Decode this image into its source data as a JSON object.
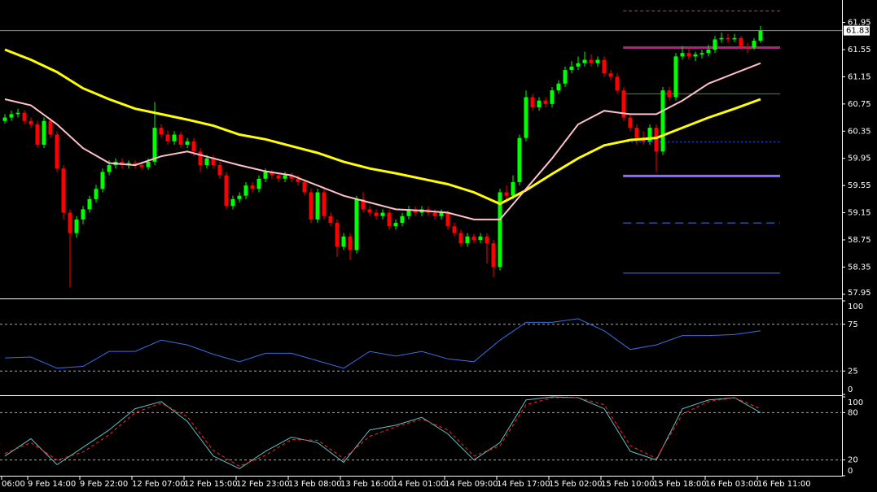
{
  "chart_data": [
    {
      "type": "candlestick",
      "up_color": "#00ff00",
      "down_color": "#ff0000",
      "xlim": [
        -0.75,
        128.375
      ],
      "ylim": [
        57.9,
        62.28
      ],
      "yticks": [
        61.95,
        61.55,
        61.15,
        60.75,
        60.35,
        59.95,
        59.55,
        59.15,
        58.75,
        58.35,
        57.95
      ],
      "xticks": [
        {
          "value": -0.5,
          "label": "06:00"
        },
        {
          "value": 3.5,
          "label": "9 Feb 14:00"
        },
        {
          "value": 11.5,
          "label": "9 Feb 22:00"
        },
        {
          "value": 19.5,
          "label": "12 Feb 07:00"
        },
        {
          "value": 27.5,
          "label": "12 Feb 15:00"
        },
        {
          "value": 35.5,
          "label": "12 Feb 23:00"
        },
        {
          "value": 43.5,
          "label": "13 Feb 08:00"
        },
        {
          "value": 51.5,
          "label": "13 Feb 16:00"
        },
        {
          "value": 59.5,
          "label": "14 Feb 01:00"
        },
        {
          "value": 67.5,
          "label": "14 Feb 09:00"
        },
        {
          "value": 75.5,
          "label": "14 Feb 17:00"
        },
        {
          "value": 83.5,
          "label": "15 Feb 02:00"
        },
        {
          "value": 91.5,
          "label": "15 Feb 10:00"
        },
        {
          "value": 99.5,
          "label": "15 Feb 18:00"
        },
        {
          "value": 107.5,
          "label": "16 Feb 03:00"
        },
        {
          "value": 115.5,
          "label": "16 Feb 11:00"
        }
      ],
      "last_price": 61.83,
      "ohlc": [
        [
          60.5,
          60.6,
          60.46,
          60.55
        ],
        [
          60.55,
          60.65,
          60.5,
          60.6
        ],
        [
          60.6,
          60.68,
          60.55,
          60.62
        ],
        [
          60.62,
          60.66,
          60.45,
          60.5
        ],
        [
          60.5,
          60.55,
          60.4,
          60.45
        ],
        [
          60.45,
          60.5,
          60.1,
          60.15
        ],
        [
          60.15,
          60.55,
          60.1,
          60.5
        ],
        [
          60.5,
          60.54,
          60.25,
          60.3
        ],
        [
          60.3,
          60.35,
          59.75,
          59.8
        ],
        [
          59.8,
          59.85,
          59.05,
          59.15
        ],
        [
          59.15,
          59.2,
          58.05,
          58.85
        ],
        [
          58.85,
          59.1,
          58.78,
          59.05
        ],
        [
          59.05,
          59.25,
          58.98,
          59.2
        ],
        [
          59.2,
          59.4,
          59.15,
          59.35
        ],
        [
          59.35,
          59.56,
          59.3,
          59.5
        ],
        [
          59.5,
          59.8,
          59.45,
          59.75
        ],
        [
          59.75,
          59.92,
          59.7,
          59.85
        ],
        [
          59.85,
          59.95,
          59.8,
          59.9
        ],
        [
          59.9,
          59.95,
          59.8,
          59.85
        ],
        [
          59.85,
          59.92,
          59.8,
          59.88
        ],
        [
          59.88,
          59.92,
          59.8,
          59.85
        ],
        [
          59.85,
          59.9,
          59.78,
          59.82
        ],
        [
          59.82,
          59.95,
          59.78,
          59.9
        ],
        [
          59.9,
          60.78,
          59.85,
          60.4
        ],
        [
          60.4,
          60.45,
          60.25,
          60.3
        ],
        [
          60.3,
          60.36,
          60.15,
          60.2
        ],
        [
          60.2,
          60.35,
          60.15,
          60.3
        ],
        [
          60.3,
          60.34,
          60.1,
          60.15
        ],
        [
          60.15,
          60.25,
          60.1,
          60.2
        ],
        [
          60.2,
          60.25,
          59.98,
          60.05
        ],
        [
          60.05,
          60.1,
          59.75,
          59.85
        ],
        [
          59.85,
          60.0,
          59.8,
          59.95
        ],
        [
          59.95,
          60.0,
          59.8,
          59.85
        ],
        [
          59.85,
          59.9,
          59.65,
          59.7
        ],
        [
          59.7,
          59.75,
          59.2,
          59.25
        ],
        [
          59.25,
          59.4,
          59.2,
          59.35
        ],
        [
          59.35,
          59.45,
          59.3,
          59.4
        ],
        [
          59.4,
          59.6,
          59.35,
          59.55
        ],
        [
          59.55,
          59.6,
          59.45,
          59.5
        ],
        [
          59.5,
          59.7,
          59.45,
          59.65
        ],
        [
          59.65,
          59.8,
          59.6,
          59.75
        ],
        [
          59.75,
          59.78,
          59.65,
          59.7
        ],
        [
          59.7,
          59.74,
          59.6,
          59.65
        ],
        [
          59.65,
          59.75,
          59.6,
          59.7
        ],
        [
          59.7,
          59.74,
          59.6,
          59.65
        ],
        [
          59.65,
          59.7,
          59.55,
          59.6
        ],
        [
          59.6,
          59.64,
          59.4,
          59.45
        ],
        [
          59.45,
          59.5,
          59.0,
          59.05
        ],
        [
          59.05,
          59.5,
          59.0,
          59.45
        ],
        [
          59.45,
          59.5,
          59.05,
          59.1
        ],
        [
          59.1,
          59.15,
          58.95,
          59.0
        ],
        [
          59.0,
          59.05,
          58.5,
          58.65
        ],
        [
          58.65,
          58.85,
          58.6,
          58.8
        ],
        [
          58.8,
          58.85,
          58.45,
          58.6
        ],
        [
          58.6,
          59.4,
          58.55,
          59.35
        ],
        [
          59.35,
          59.45,
          59.15,
          59.2
        ],
        [
          59.2,
          59.25,
          59.1,
          59.15
        ],
        [
          59.15,
          59.2,
          59.05,
          59.1
        ],
        [
          59.1,
          59.2,
          59.05,
          59.15
        ],
        [
          59.15,
          59.2,
          58.9,
          58.95
        ],
        [
          58.95,
          59.05,
          58.9,
          59.0
        ],
        [
          59.0,
          59.15,
          58.95,
          59.1
        ],
        [
          59.1,
          59.25,
          59.05,
          59.2
        ],
        [
          59.2,
          59.24,
          59.1,
          59.15
        ],
        [
          59.15,
          59.25,
          59.1,
          59.2
        ],
        [
          59.2,
          59.24,
          59.1,
          59.15
        ],
        [
          59.15,
          59.2,
          59.05,
          59.1
        ],
        [
          59.1,
          59.2,
          59.05,
          59.15
        ],
        [
          59.15,
          59.18,
          58.9,
          58.95
        ],
        [
          58.95,
          59.0,
          58.8,
          58.85
        ],
        [
          58.85,
          58.9,
          58.65,
          58.7
        ],
        [
          58.7,
          58.85,
          58.65,
          58.8
        ],
        [
          58.8,
          58.84,
          58.7,
          58.75
        ],
        [
          58.75,
          58.85,
          58.7,
          58.8
        ],
        [
          58.8,
          58.85,
          58.4,
          58.7
        ],
        [
          58.7,
          58.75,
          58.2,
          58.35
        ],
        [
          58.35,
          59.5,
          58.3,
          59.45
        ],
        [
          59.45,
          59.55,
          59.3,
          59.4
        ],
        [
          59.4,
          59.7,
          59.35,
          59.6
        ],
        [
          59.6,
          60.3,
          59.55,
          60.25
        ],
        [
          60.25,
          60.95,
          60.2,
          60.85
        ],
        [
          60.85,
          60.9,
          60.65,
          60.7
        ],
        [
          60.7,
          60.85,
          60.65,
          60.8
        ],
        [
          60.8,
          60.85,
          60.7,
          60.75
        ],
        [
          60.75,
          61.0,
          60.7,
          60.95
        ],
        [
          60.95,
          61.1,
          60.9,
          61.05
        ],
        [
          61.05,
          61.3,
          61.0,
          61.25
        ],
        [
          61.25,
          61.38,
          61.2,
          61.3
        ],
        [
          61.3,
          61.45,
          61.25,
          61.35
        ],
        [
          61.35,
          61.52,
          61.3,
          61.4
        ],
        [
          61.4,
          61.48,
          61.3,
          61.35
        ],
        [
          61.35,
          61.45,
          61.3,
          61.4
        ],
        [
          61.4,
          61.45,
          61.15,
          61.2
        ],
        [
          61.2,
          61.25,
          61.1,
          61.15
        ],
        [
          61.15,
          61.2,
          60.9,
          60.95
        ],
        [
          60.95,
          61.0,
          60.5,
          60.55
        ],
        [
          60.55,
          60.6,
          60.35,
          60.4
        ],
        [
          60.4,
          60.45,
          60.15,
          60.25
        ],
        [
          60.25,
          60.35,
          60.15,
          60.2
        ],
        [
          60.2,
          60.45,
          60.15,
          60.4
        ],
        [
          60.4,
          60.45,
          59.75,
          60.05
        ],
        [
          60.05,
          61.0,
          60.0,
          60.95
        ],
        [
          60.95,
          61.0,
          60.8,
          60.85
        ],
        [
          60.85,
          61.5,
          60.8,
          61.45
        ],
        [
          61.45,
          61.6,
          61.4,
          61.5
        ],
        [
          61.5,
          61.58,
          61.4,
          61.45
        ],
        [
          61.45,
          61.52,
          61.38,
          61.48
        ],
        [
          61.48,
          61.55,
          61.42,
          61.5
        ],
        [
          61.5,
          61.62,
          61.45,
          61.55
        ],
        [
          61.55,
          61.75,
          61.5,
          61.7
        ],
        [
          61.7,
          61.8,
          61.65,
          61.72
        ],
        [
          61.72,
          61.78,
          61.65,
          61.7
        ],
        [
          61.7,
          61.78,
          61.66,
          61.72
        ],
        [
          61.72,
          61.75,
          61.55,
          61.6
        ],
        [
          61.6,
          61.65,
          61.5,
          61.58
        ],
        [
          61.58,
          61.72,
          61.55,
          61.68
        ],
        [
          61.68,
          61.9,
          61.65,
          61.83
        ]
      ],
      "x": [
        0,
        4,
        8,
        12,
        16,
        20,
        24,
        28,
        32,
        36,
        40,
        44,
        48,
        52,
        56,
        60,
        64,
        68,
        72,
        76,
        80,
        84,
        88,
        92,
        96,
        100,
        104,
        108,
        112,
        116
      ],
      "lines": [
        {
          "color": "#ffff00",
          "width": 3,
          "values": [
            61.55,
            61.4,
            61.22,
            60.98,
            60.82,
            60.68,
            60.6,
            60.52,
            60.43,
            60.3,
            60.23,
            60.13,
            60.03,
            59.9,
            59.8,
            59.73,
            59.65,
            59.57,
            59.45,
            59.28,
            59.48,
            59.72,
            59.95,
            60.14,
            60.22,
            60.25,
            60.4,
            60.55,
            60.68,
            60.82
          ]
        },
        {
          "color": "#ffc0cb",
          "width": 2,
          "values": [
            60.82,
            60.73,
            60.45,
            60.1,
            59.88,
            59.85,
            59.98,
            60.05,
            59.95,
            59.85,
            59.76,
            59.7,
            59.55,
            59.4,
            59.3,
            59.2,
            59.18,
            59.15,
            59.05,
            59.05,
            59.5,
            59.95,
            60.45,
            60.65,
            60.6,
            60.6,
            60.8,
            61.05,
            61.2,
            61.35
          ]
        }
      ],
      "levels": [
        {
          "value": 62.12,
          "color": "#ff3030",
          "width": 1,
          "style": "dash"
        },
        {
          "value": 61.58,
          "color": "#c71585",
          "width": 3,
          "style": "solid"
        },
        {
          "value": 60.9,
          "color": "#00c000",
          "width": 1,
          "style": "solid"
        },
        {
          "value": 60.19,
          "color": "#3060ff",
          "width": 1,
          "style": "dot"
        },
        {
          "value": 59.69,
          "color": "#8a6cff",
          "width": 3,
          "style": "solid"
        },
        {
          "value": 59.0,
          "color": "#3c78ff",
          "width": 1,
          "style": "longdash"
        },
        {
          "value": 58.26,
          "color": "#3c78ff",
          "width": 1,
          "style": "solid"
        }
      ]
    },
    {
      "type": "line",
      "ylim": [
        0,
        100
      ],
      "yticks": [
        100,
        75,
        25,
        0
      ],
      "x": [
        0,
        4,
        8,
        12,
        16,
        20,
        24,
        28,
        32,
        36,
        40,
        44,
        48,
        52,
        56,
        60,
        64,
        68,
        72,
        76,
        80,
        84,
        88,
        92,
        96,
        100,
        104,
        108,
        112,
        116
      ],
      "series": [
        {
          "color": "#3a6fe0",
          "style": "solid",
          "values": [
            39,
            40,
            28,
            30,
            46,
            46,
            58,
            53,
            43,
            35,
            44,
            44,
            36,
            28,
            46,
            41,
            46,
            38,
            35,
            58,
            77,
            77,
            81,
            68,
            48,
            53,
            63,
            63,
            64,
            68
          ]
        }
      ]
    },
    {
      "type": "line",
      "ylim": [
        0,
        100
      ],
      "yticks": [
        100,
        80,
        20,
        0
      ],
      "x": [
        0,
        4,
        8,
        12,
        16,
        20,
        24,
        28,
        32,
        36,
        40,
        44,
        48,
        52,
        56,
        60,
        64,
        68,
        72,
        76,
        80,
        84,
        88,
        92,
        96,
        100,
        104,
        108,
        112,
        116
      ],
      "series": [
        {
          "color": "#5fc0c8",
          "style": "solid",
          "values": [
            25,
            47,
            14,
            36,
            58,
            85,
            94,
            69,
            25,
            9,
            31,
            49,
            42,
            17,
            58,
            64,
            74,
            53,
            20,
            42,
            96,
            100,
            99,
            85,
            31,
            20,
            85,
            96,
            99,
            80
          ]
        },
        {
          "color": "#ff2020",
          "style": "dash",
          "values": [
            28,
            42,
            20,
            30,
            52,
            80,
            92,
            75,
            32,
            12,
            26,
            46,
            45,
            22,
            50,
            62,
            72,
            58,
            25,
            38,
            90,
            99,
            99,
            90,
            38,
            22,
            78,
            94,
            99,
            85
          ]
        }
      ]
    }
  ]
}
